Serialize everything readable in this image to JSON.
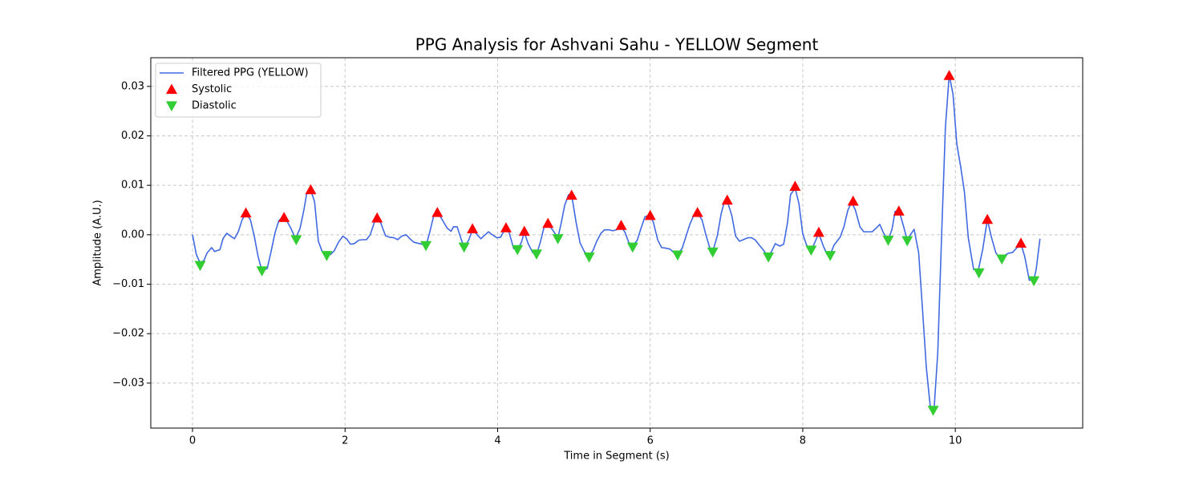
{
  "chart_data": {
    "type": "line",
    "title": "PPG Analysis for Ashvani Sahu - YELLOW Segment",
    "xlabel": "Time in Segment (s)",
    "ylabel": "Amplitude (A.U.)",
    "xlim": [
      -0.547,
      11.67
    ],
    "ylim": [
      -0.0391,
      0.0358
    ],
    "xticks": [
      0,
      2,
      4,
      6,
      8,
      10
    ],
    "yticks": [
      {
        "value": -0.03,
        "label": "−0.03"
      },
      {
        "value": -0.02,
        "label": "−0.02"
      },
      {
        "value": -0.01,
        "label": "−0.01"
      },
      {
        "value": 0,
        "label": "0.00"
      },
      0.01,
      0.02,
      0.03
    ],
    "grid": true,
    "legend": "upper left",
    "series": [
      {
        "name": "Filtered PPG (YELLOW)",
        "type": "line",
        "color": "#4169e1",
        "x": [
          0,
          0.05,
          0.1,
          0.15,
          0.19,
          0.25,
          0.29,
          0.36,
          0.4,
          0.45,
          0.5,
          0.55,
          0.6,
          0.65,
          0.7,
          0.76,
          0.81,
          0.86,
          0.91,
          0.98,
          1.03,
          1.08,
          1.13,
          1.18,
          1.23,
          1.29,
          1.35,
          1.41,
          1.46,
          1.5,
          1.55,
          1.6,
          1.65,
          1.7,
          1.76,
          1.81,
          1.86,
          1.91,
          1.97,
          2.02,
          2.07,
          2.12,
          2.18,
          2.23,
          2.28,
          2.33,
          2.39,
          2.42,
          2.47,
          2.53,
          2.58,
          2.64,
          2.69,
          2.74,
          2.8,
          2.85,
          2.9,
          2.95,
          3.01,
          3.06,
          3.11,
          3.16,
          3.21,
          3.26,
          3.34,
          3.39,
          3.42,
          3.47,
          3.52,
          3.56,
          3.62,
          3.67,
          3.72,
          3.78,
          3.83,
          3.88,
          3.93,
          3.99,
          4.04,
          4.1,
          4.15,
          4.21,
          4.26,
          4.31,
          4.35,
          4.4,
          4.46,
          4.51,
          4.56,
          4.61,
          4.66,
          4.72,
          4.79,
          4.83,
          4.88,
          4.93,
          4.97,
          5.03,
          5.08,
          5.13,
          5.19,
          5.25,
          5.3,
          5.35,
          5.4,
          5.46,
          5.51,
          5.56,
          5.62,
          5.67,
          5.72,
          5.77,
          5.83,
          5.88,
          5.93,
          5.99,
          6.04,
          6.1,
          6.15,
          6.2,
          6.26,
          6.31,
          6.36,
          6.42,
          6.47,
          6.52,
          6.57,
          6.62,
          6.68,
          6.73,
          6.78,
          6.82,
          6.88,
          6.93,
          6.97,
          7.01,
          7.07,
          7.12,
          7.17,
          7.22,
          7.28,
          7.33,
          7.38,
          7.43,
          7.49,
          7.54,
          7.59,
          7.64,
          7.7,
          7.75,
          7.8,
          7.84,
          7.9,
          7.95,
          8.0,
          8.05,
          8.11,
          8.16,
          8.21,
          8.27,
          8.32,
          8.36,
          8.41,
          8.49,
          8.54,
          8.59,
          8.64,
          8.69,
          8.75,
          8.8,
          8.85,
          8.91,
          8.96,
          9.01,
          9.06,
          9.12,
          9.17,
          9.21,
          9.26,
          9.32,
          9.37,
          9.42,
          9.46,
          9.52,
          9.57,
          9.62,
          9.67,
          9.72,
          9.77,
          9.82,
          9.87,
          9.92,
          9.97,
          10.02,
          10.07,
          10.12,
          10.17,
          10.24,
          10.3,
          10.36,
          10.42,
          10.47,
          10.53,
          10.58,
          10.63,
          10.7,
          10.75,
          10.79,
          10.86,
          10.91,
          10.97,
          11.03,
          11.06,
          11.11
        ],
        "values": [
          0,
          -0.004,
          -0.0057,
          -0.0052,
          -0.0037,
          -0.0026,
          -0.0034,
          -0.003,
          -0.0008,
          0.0003,
          -0.0003,
          -0.0008,
          0.0006,
          0.003,
          0.0044,
          0.003,
          -0.0003,
          -0.0044,
          -0.0073,
          -0.0068,
          -0.0034,
          0.0003,
          0.0028,
          0.0036,
          0.003,
          0.0013,
          -0.0008,
          0.0013,
          0.005,
          0.0086,
          0.009,
          0.0067,
          -0.0013,
          -0.0034,
          -0.004,
          -0.004,
          -0.0032,
          -0.0016,
          -0.0003,
          -0.0008,
          -0.0019,
          -0.0018,
          -0.0011,
          -0.001,
          -0.001,
          0,
          0.0028,
          0.0034,
          0.0023,
          -0.0002,
          -0.0005,
          -0.0006,
          -0.001,
          -0.0003,
          0,
          -0.0008,
          -0.0015,
          -0.0017,
          -0.0019,
          -0.0023,
          0.0005,
          0.0037,
          0.0044,
          0.0034,
          0.0013,
          0.0007,
          0.0016,
          0.0016,
          -0.0008,
          -0.0026,
          -0.0011,
          0.001,
          0.0002,
          -0.0008,
          -0.0001,
          0.0006,
          0,
          -0.0006,
          -0.0005,
          0.0013,
          0.0005,
          -0.0028,
          -0.003,
          -0.0016,
          0.0005,
          -0.0018,
          -0.0036,
          -0.004,
          -0.0015,
          0.0016,
          0.0021,
          0.001,
          -0.0006,
          0.0021,
          0.006,
          0.0081,
          0.0081,
          0.0024,
          -0.0016,
          -0.0032,
          -0.0045,
          -0.0032,
          -0.0013,
          0.0002,
          0.001,
          0.001,
          0.0008,
          0.001,
          0.0016,
          0.0005,
          -0.0016,
          -0.0024,
          -0.0011,
          0.0013,
          0.0036,
          0.004,
          0.0026,
          -0.0011,
          -0.0026,
          -0.0027,
          -0.0029,
          -0.0036,
          -0.004,
          -0.0027,
          -0.0003,
          0.0021,
          0.0039,
          0.0044,
          0.003,
          0,
          -0.0026,
          -0.0034,
          -0.0002,
          0.0042,
          0.0066,
          0.0068,
          0.0039,
          -0.0003,
          -0.0013,
          -0.001,
          -0.0006,
          -0.0006,
          -0.0011,
          -0.0021,
          -0.0032,
          -0.0044,
          -0.0034,
          -0.0018,
          -0.0023,
          -0.0019,
          0.0024,
          0.0081,
          0.0094,
          0.0063,
          0.0002,
          -0.0021,
          -0.0032,
          -0.0015,
          0.0003,
          -0.0023,
          -0.004,
          -0.004,
          -0.0021,
          -0.0005,
          0.0016,
          0.0049,
          0.0066,
          0.005,
          0.0016,
          0.0006,
          0.0006,
          0.0006,
          0.0013,
          0.0021,
          0.0003,
          -0.0011,
          0.0011,
          0.0047,
          0.005,
          0.0018,
          -0.0011,
          0.0002,
          0.0011,
          -0.0037,
          -0.0151,
          -0.0268,
          -0.0345,
          -0.0357,
          -0.0238,
          -0.0003,
          0.0216,
          0.0324,
          0.0284,
          0.0183,
          0.0138,
          0.0086,
          -0.0006,
          -0.007,
          -0.0073,
          -0.0029,
          0.0031,
          -0.0003,
          -0.0036,
          -0.0047,
          -0.0043,
          -0.0037,
          -0.0036,
          -0.0029,
          -0.0018,
          -0.0044,
          -0.0092,
          -0.0091,
          -0.007,
          -0.0008
        ]
      },
      {
        "name": "Systolic",
        "type": "scatter",
        "marker": "triangle-up",
        "color": "#ff0000",
        "x": [
          0.7,
          1.2,
          1.55,
          2.42,
          3.21,
          3.67,
          4.11,
          4.35,
          4.66,
          4.97,
          5.62,
          6.0,
          6.62,
          7.01,
          7.9,
          8.21,
          8.66,
          9.26,
          9.92,
          10.42,
          10.86
        ],
        "values": [
          0.0044,
          0.0035,
          0.0091,
          0.0034,
          0.0045,
          0.0012,
          0.0014,
          0.0007,
          0.0023,
          0.008,
          0.0019,
          0.0039,
          0.0045,
          0.007,
          0.0098,
          0.0005,
          0.0068,
          0.0048,
          0.0322,
          0.0031,
          -0.0017
        ]
      },
      {
        "name": "Diastolic",
        "type": "scatter",
        "marker": "triangle-down",
        "color": "#32cd32",
        "x": [
          0.1,
          0.91,
          1.36,
          1.76,
          3.06,
          3.56,
          4.26,
          4.51,
          4.79,
          5.2,
          5.77,
          6.36,
          6.82,
          7.55,
          8.11,
          8.36,
          9.12,
          9.37,
          9.71,
          10.31,
          10.61,
          11.03
        ],
        "values": [
          -0.0062,
          -0.0073,
          -0.001,
          -0.0042,
          -0.0022,
          -0.0025,
          -0.003,
          -0.0039,
          -0.0008,
          -0.0045,
          -0.0025,
          -0.0041,
          -0.0035,
          -0.0045,
          -0.0031,
          -0.0042,
          -0.0011,
          -0.0012,
          -0.0355,
          -0.0077,
          -0.0049,
          -0.0093
        ]
      }
    ]
  }
}
